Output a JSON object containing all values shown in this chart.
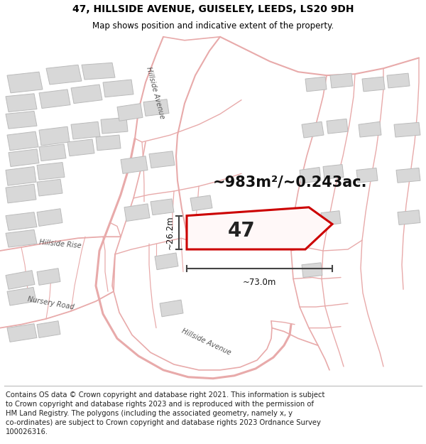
{
  "title_line1": "47, HILLSIDE AVENUE, GUISELEY, LEEDS, LS20 9DH",
  "title_line2": "Map shows position and indicative extent of the property.",
  "footer_lines": [
    "Contains OS data © Crown copyright and database right 2021. This information is subject",
    "to Crown copyright and database rights 2023 and is reproduced with the permission of",
    "HM Land Registry. The polygons (including the associated geometry, namely x, y",
    "co-ordinates) are subject to Crown copyright and database rights 2023 Ordnance Survey",
    "100026316."
  ],
  "map_bg": "#ffffff",
  "road_color": "#e8aaaa",
  "road_lw": 1.2,
  "building_fc": "#d8d8d8",
  "building_ec": "#bbbbbb",
  "highlight_ec": "#cc0000",
  "highlight_fc": "#fff8f8",
  "property_number": "47",
  "area_text": "~983m²/~0.243ac.",
  "dim_width": "~73.0m",
  "dim_height": "~26.2m",
  "title_fontsize": 10,
  "subtitle_fontsize": 8.5,
  "footer_fontsize": 7.2,
  "area_fontsize": 15,
  "number_fontsize": 20,
  "dim_fontsize": 8.5,
  "label_fontsize": 7
}
